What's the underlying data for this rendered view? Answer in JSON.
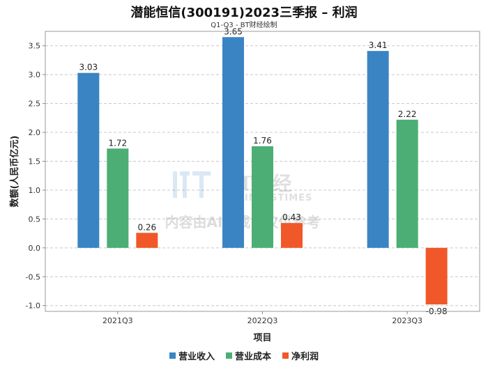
{
  "chart_data": {
    "type": "bar",
    "title": "潜能恒信(300191)2023三季报 – 利润",
    "subtitle": "Q1-Q3 - BT财经绘制",
    "xlabel": "项目",
    "ylabel": "数额(人民币亿元)",
    "categories": [
      "2021Q3",
      "2022Q3",
      "2023Q3"
    ],
    "series": [
      {
        "name": "营业收入",
        "color": "#3a84c4",
        "values": [
          3.03,
          3.65,
          3.41
        ]
      },
      {
        "name": "营业成本",
        "color": "#4cae74",
        "values": [
          1.72,
          1.76,
          2.22
        ]
      },
      {
        "name": "净利润",
        "color": "#f0582a",
        "values": [
          0.26,
          0.43,
          -0.98
        ]
      }
    ],
    "ylim": [
      -1.1,
      3.75
    ],
    "yticks": [
      -1.0,
      -0.5,
      0.0,
      0.5,
      1.0,
      1.5,
      2.0,
      2.5,
      3.0,
      3.5
    ],
    "grid": true,
    "legend_position": "bottom"
  },
  "watermark": {
    "brand": "BT财经",
    "brand_en": "BUSINESSTIMES",
    "notice": "内容由AI生成，仅供参考"
  }
}
